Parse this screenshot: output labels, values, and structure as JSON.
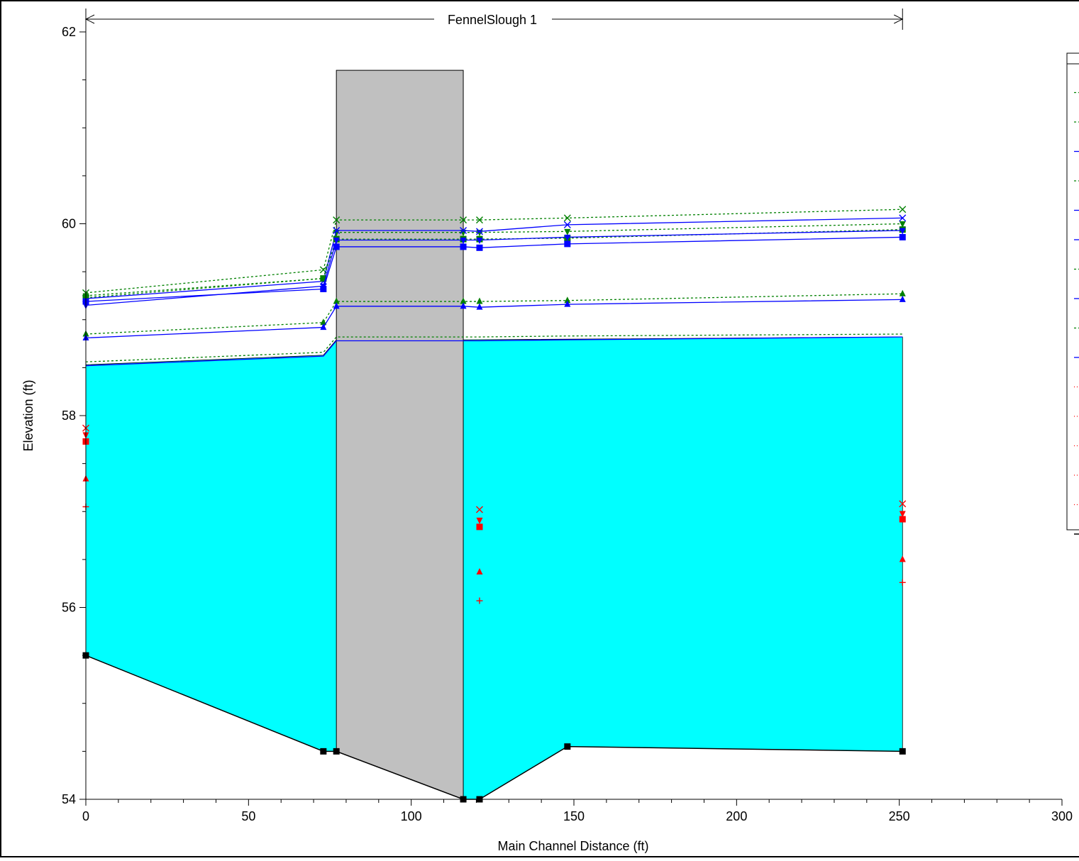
{
  "chart_data": {
    "type": "line",
    "title": "",
    "reach_label": "FennelSlough 1",
    "xlabel": "Main Channel Distance (ft)",
    "ylabel": "Elevation (ft)",
    "xlim": [
      0,
      300
    ],
    "ylim": [
      54,
      62
    ],
    "x_ticks": [
      0,
      50,
      100,
      150,
      200,
      250,
      300
    ],
    "y_ticks": [
      54,
      56,
      58,
      60,
      62
    ],
    "grid": false,
    "legend_position": "right",
    "colors": {
      "water_fill": "#00ffff",
      "structure_fill": "#c0c0c0",
      "ground": "#000000",
      "energy_grade": "#008000",
      "water_surface": "#0000ff",
      "critical": "#ff0000"
    },
    "structure": {
      "x_start": 77,
      "x_end": 116,
      "top": 61.6
    },
    "ground": {
      "x": [
        0,
        73,
        77,
        116,
        121,
        148,
        251
      ],
      "y": [
        55.5,
        54.5,
        54.5,
        54.0,
        54.0,
        54.55,
        54.5
      ]
    },
    "water_fill_surface": {
      "x": [
        0,
        73,
        77,
        116,
        251
      ],
      "y": [
        58.53,
        58.63,
        58.79,
        58.79,
        58.82
      ]
    },
    "series": [
      {
        "style": "eg",
        "marker": "x",
        "x": [
          0,
          73,
          77,
          116,
          121,
          148,
          251
        ],
        "y": [
          59.28,
          59.52,
          60.04,
          60.04,
          60.04,
          60.06,
          60.15
        ]
      },
      {
        "style": "eg",
        "marker": "tri-down",
        "x": [
          0,
          73,
          77,
          116,
          121,
          148,
          251
        ],
        "y": [
          59.25,
          59.43,
          59.91,
          59.91,
          59.91,
          59.92,
          60.0
        ]
      },
      {
        "style": "ws",
        "marker": "x",
        "x": [
          0,
          73,
          77,
          116,
          121,
          148,
          251
        ],
        "y": [
          59.22,
          59.4,
          59.93,
          59.93,
          59.92,
          59.99,
          60.06
        ]
      },
      {
        "style": "eg",
        "marker": "square",
        "x": [
          0,
          73,
          77,
          116,
          121,
          148,
          251
        ],
        "y": [
          59.23,
          59.43,
          59.84,
          59.84,
          59.84,
          59.85,
          59.94
        ]
      },
      {
        "style": "ws",
        "marker": "tri-down",
        "x": [
          0,
          73,
          77,
          116,
          121,
          148,
          251
        ],
        "y": [
          59.15,
          59.35,
          59.83,
          59.83,
          59.83,
          59.86,
          59.93
        ]
      },
      {
        "style": "ws",
        "marker": "square",
        "x": [
          0,
          73,
          77,
          116,
          121,
          148,
          251
        ],
        "y": [
          59.19,
          59.32,
          59.76,
          59.76,
          59.75,
          59.79,
          59.86
        ]
      },
      {
        "style": "eg",
        "marker": "triangle",
        "x": [
          0,
          73,
          77,
          116,
          121,
          148,
          251
        ],
        "y": [
          58.85,
          58.97,
          59.19,
          59.19,
          59.19,
          59.2,
          59.27
        ]
      },
      {
        "style": "ws",
        "marker": "triangle",
        "x": [
          0,
          73,
          77,
          116,
          121,
          148,
          251
        ],
        "y": [
          58.81,
          58.92,
          59.14,
          59.14,
          59.13,
          59.16,
          59.21
        ]
      },
      {
        "style": "eg",
        "marker": "none",
        "x": [
          0,
          73,
          77,
          116,
          121,
          148,
          251
        ],
        "y": [
          58.56,
          58.66,
          58.82,
          58.82,
          58.82,
          58.83,
          58.85
        ]
      },
      {
        "style": "ws",
        "marker": "none",
        "x": [
          0,
          73,
          77,
          116,
          121,
          148,
          251
        ],
        "y": [
          58.52,
          58.62,
          58.78,
          58.78,
          58.78,
          58.79,
          58.82
        ]
      },
      {
        "style": "crit",
        "marker": "x",
        "x": [
          0,
          121,
          251
        ],
        "y": [
          57.87,
          57.02,
          57.08
        ]
      },
      {
        "style": "crit",
        "marker": "tri-down",
        "x": [
          0,
          121,
          251
        ],
        "y": [
          57.8,
          56.91,
          56.98
        ]
      },
      {
        "style": "crit",
        "marker": "square",
        "x": [
          0,
          121,
          251
        ],
        "y": [
          57.73,
          56.84,
          56.92
        ]
      },
      {
        "style": "crit",
        "marker": "triangle",
        "x": [
          0,
          121,
          251
        ],
        "y": [
          57.34,
          56.37,
          56.5
        ]
      },
      {
        "style": "crit",
        "marker": "plus",
        "x": [
          0,
          121,
          251
        ],
        "y": [
          57.05,
          56.07,
          56.26
        ]
      }
    ],
    "legend_entries": [
      {
        "style": "eg"
      },
      {
        "style": "eg"
      },
      {
        "style": "ws"
      },
      {
        "style": "eg"
      },
      {
        "style": "ws"
      },
      {
        "style": "ws"
      },
      {
        "style": "eg"
      },
      {
        "style": "ws"
      },
      {
        "style": "eg"
      },
      {
        "style": "ws"
      },
      {
        "style": "crit"
      },
      {
        "style": "crit"
      },
      {
        "style": "crit"
      },
      {
        "style": "crit"
      },
      {
        "style": "crit"
      },
      {
        "style": "ground"
      }
    ]
  }
}
